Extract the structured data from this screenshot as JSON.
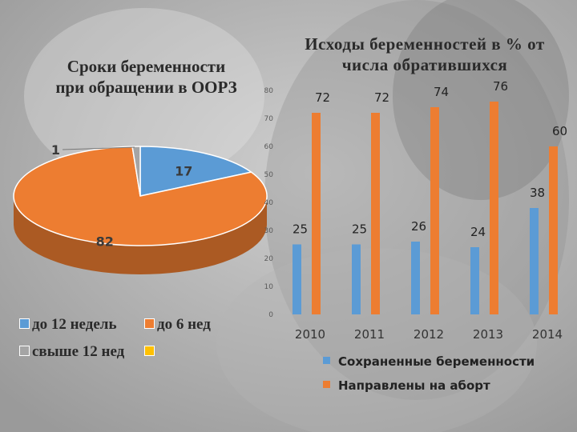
{
  "colors": {
    "blue": "#5b9bd5",
    "orange": "#ed7d31",
    "gray": "#a5a5a5",
    "yellow": "#ffc000"
  },
  "pie": {
    "title_line1": "Сроки беременности",
    "title_line2": "при обращении в ООРЗ",
    "legend": {
      "item1": "до 12 недель",
      "item2": "до 6 нед",
      "item3": "свыше 12 нед",
      "item4": ""
    }
  },
  "bar": {
    "title_line1": "Исходы беременностей в % от",
    "title_line2": "числа обратившихся",
    "legend": {
      "item1": "Сохраненные беременности",
      "item2": "Направлены на аборт"
    }
  },
  "chart_data": [
    {
      "type": "pie",
      "title": "Сроки беременности при обращении в ООРЗ",
      "slices": [
        {
          "label": "до 12 недель",
          "value": 17,
          "color": "#5b9bd5"
        },
        {
          "label": "до 6 нед",
          "value": 82,
          "color": "#ed7d31"
        },
        {
          "label": "свыше 12 нед",
          "value": 1,
          "color": "#a5a5a5"
        },
        {
          "label": "",
          "value": 0,
          "color": "#ffc000"
        }
      ],
      "legend_position": "bottom"
    },
    {
      "type": "bar",
      "title": "Исходы беременностей в % от числа обратившихся",
      "categories": [
        "2010",
        "2011",
        "2012",
        "2013",
        "2014"
      ],
      "series": [
        {
          "name": "Сохраненные беременности",
          "values": [
            25,
            25,
            26,
            24,
            38
          ],
          "color": "#5b9bd5"
        },
        {
          "name": "Направлены на аборт",
          "values": [
            72,
            72,
            74,
            76,
            60
          ],
          "color": "#ed7d31"
        }
      ],
      "ylim": [
        0,
        80
      ],
      "yticks": [
        0,
        10,
        20,
        30,
        40,
        50,
        60,
        70,
        80
      ],
      "grid": false,
      "legend_position": "bottom"
    }
  ]
}
